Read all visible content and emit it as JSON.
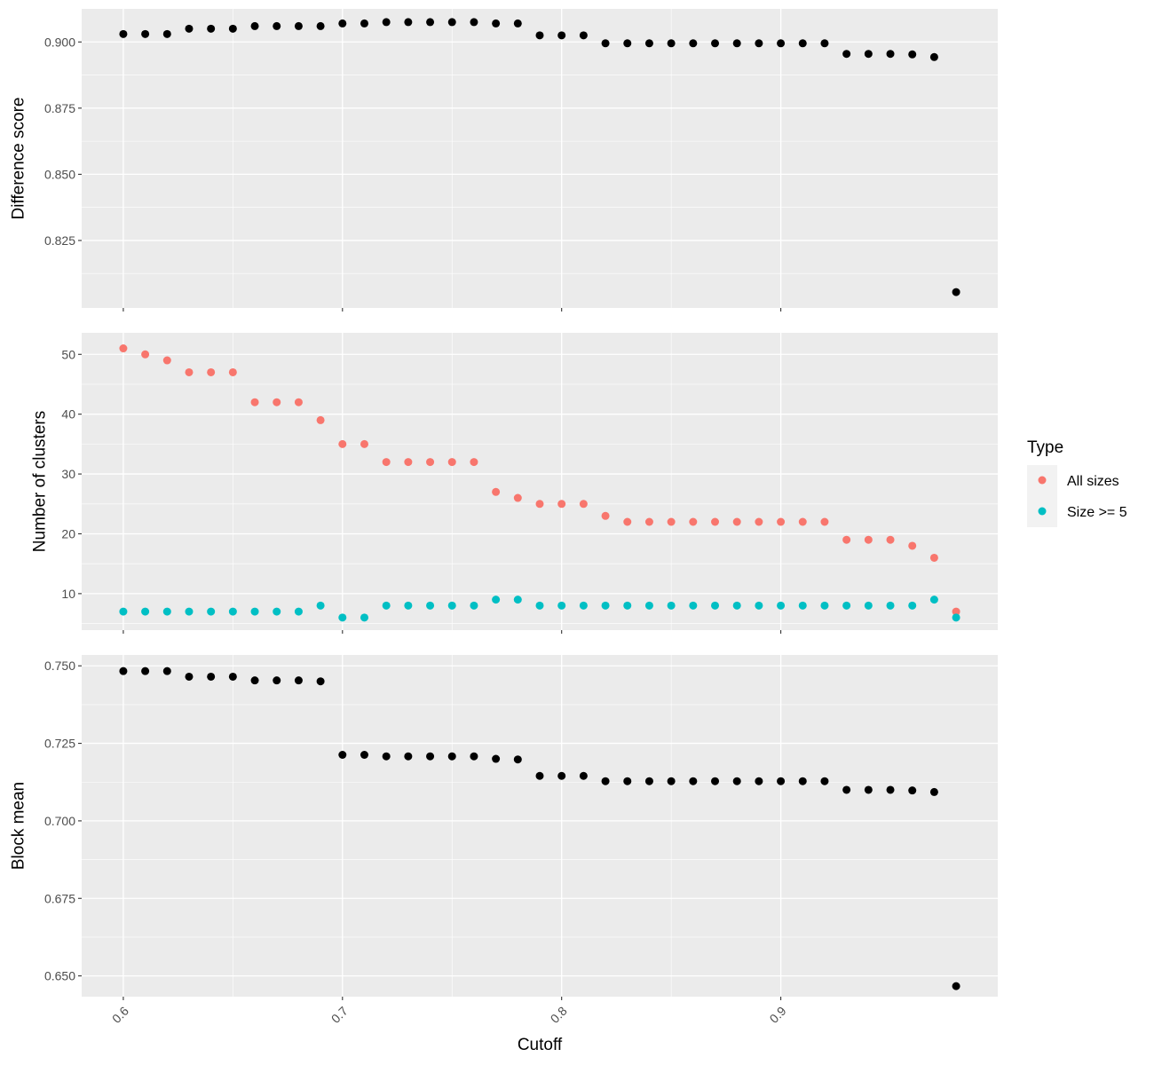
{
  "colors": {
    "panel_bg": "#EBEBEB",
    "grid_major": "#FFFFFF",
    "tick": "#333333",
    "tick_text": "#4D4D4D",
    "point_default": "#000000",
    "all_sizes": "#F8766D",
    "size_ge_5": "#00BFC4"
  },
  "chart_data": {
    "type": "scatter",
    "layout": "three vertically stacked panels sharing x axis",
    "grid": true,
    "legend_position": "right",
    "x_axis": {
      "label": "Cutoff",
      "ticks": [
        "0.6",
        "0.7",
        "0.8",
        "0.9"
      ],
      "tick_values": [
        0.6,
        0.7,
        0.8,
        0.9
      ],
      "range": [
        0.581,
        0.999
      ],
      "tick_label_rotation": "45 degrees"
    },
    "x": [
      0.6,
      0.61,
      0.62,
      0.63,
      0.64,
      0.65,
      0.66,
      0.67,
      0.68,
      0.69,
      0.7,
      0.71,
      0.72,
      0.73,
      0.74,
      0.75,
      0.76,
      0.77,
      0.78,
      0.79,
      0.8,
      0.81,
      0.82,
      0.83,
      0.84,
      0.85,
      0.86,
      0.87,
      0.88,
      0.89,
      0.9,
      0.91,
      0.92,
      0.93,
      0.94,
      0.95,
      0.96,
      0.97,
      0.98
    ],
    "panels": [
      {
        "ylabel": "Difference score",
        "ylim": [
          0.7995,
          0.9125
        ],
        "yticks": [
          "0.825",
          "0.850",
          "0.875",
          "0.900"
        ],
        "ytick_values": [
          0.825,
          0.85,
          0.875,
          0.9
        ],
        "series": [
          {
            "values": [
              0.903,
              0.903,
              0.903,
              0.905,
              0.905,
              0.905,
              0.906,
              0.906,
              0.906,
              0.906,
              0.907,
              0.907,
              0.9075,
              0.9075,
              0.9075,
              0.9075,
              0.9075,
              0.907,
              0.907,
              0.9025,
              0.9025,
              0.9025,
              0.8995,
              0.8995,
              0.8995,
              0.8995,
              0.8995,
              0.8995,
              0.8995,
              0.8995,
              0.8995,
              0.8995,
              0.8995,
              0.8955,
              0.8955,
              0.8955,
              0.8953,
              0.8943,
              0.8055
            ]
          }
        ]
      },
      {
        "ylabel": "Number of clusters",
        "ylim": [
          3.9,
          53.6
        ],
        "yticks": [
          "10",
          "20",
          "30",
          "40",
          "50"
        ],
        "ytick_values": [
          10,
          20,
          30,
          40,
          50
        ],
        "series": [
          {
            "name": "All sizes",
            "values": [
              51,
              50,
              49,
              47,
              47,
              47,
              42,
              42,
              42,
              39,
              35,
              35,
              32,
              32,
              32,
              32,
              32,
              27,
              26,
              25,
              25,
              25,
              23,
              22,
              22,
              22,
              22,
              22,
              22,
              22,
              22,
              22,
              22,
              19,
              19,
              19,
              18,
              16,
              7
            ]
          },
          {
            "name": "Size >= 5",
            "values": [
              7,
              7,
              7,
              7,
              7,
              7,
              7,
              7,
              7,
              8,
              6,
              6,
              8,
              8,
              8,
              8,
              8,
              9,
              9,
              8,
              8,
              8,
              8,
              8,
              8,
              8,
              8,
              8,
              8,
              8,
              8,
              8,
              8,
              8,
              8,
              8,
              8,
              9,
              6
            ]
          }
        ]
      },
      {
        "ylabel": "Block mean",
        "ylim": [
          0.6433,
          0.7535
        ],
        "yticks": [
          "0.650",
          "0.675",
          "0.700",
          "0.725",
          "0.750"
        ],
        "ytick_values": [
          0.65,
          0.675,
          0.7,
          0.725,
          0.75
        ],
        "series": [
          {
            "values": [
              0.7483,
              0.7483,
              0.7483,
              0.7465,
              0.7465,
              0.7465,
              0.7453,
              0.7453,
              0.7453,
              0.745,
              0.7213,
              0.7213,
              0.7208,
              0.7208,
              0.7208,
              0.7208,
              0.7208,
              0.72,
              0.7198,
              0.7145,
              0.7145,
              0.7145,
              0.7128,
              0.7128,
              0.7128,
              0.7128,
              0.7128,
              0.7128,
              0.7128,
              0.7128,
              0.7128,
              0.7128,
              0.7128,
              0.71,
              0.71,
              0.71,
              0.7098,
              0.7093,
              0.6467
            ]
          }
        ]
      }
    ],
    "legend": {
      "title": "Type",
      "items": [
        "All sizes",
        "Size >= 5"
      ]
    }
  }
}
